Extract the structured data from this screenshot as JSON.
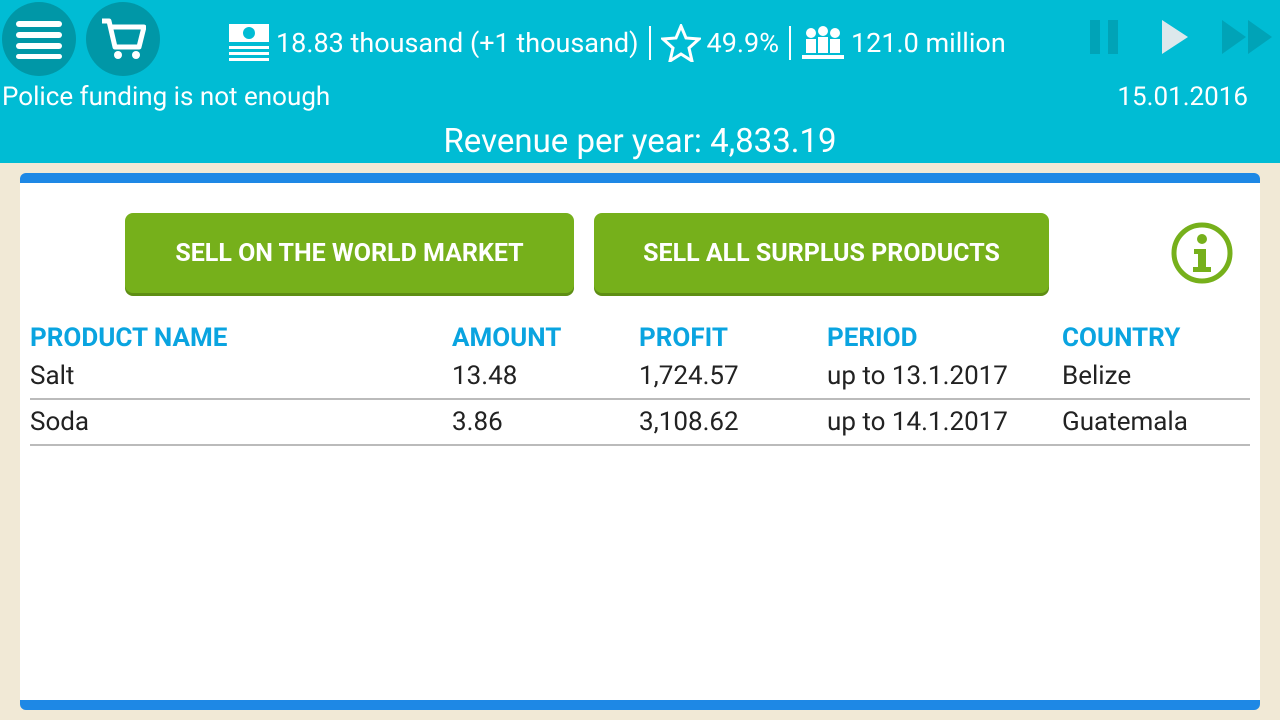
{
  "header": {
    "money": "18.83 thousand (+1 thousand)",
    "rating": "49.9%",
    "population": "121.0 million",
    "alert": "Police funding is not enough",
    "date": "15.01.2016",
    "revenue": "Revenue per year: 4,833.19"
  },
  "buttons": {
    "sell_world": "SELL ON THE WORLD MARKET",
    "sell_surplus": "SELL ALL SURPLUS PRODUCTS"
  },
  "table": {
    "columns": [
      "PRODUCT NAME",
      "AMOUNT",
      "PROFIT",
      "PERIOD",
      "COUNTRY"
    ],
    "rows": [
      [
        "Salt",
        "13.48",
        "1,724.57",
        "up to 13.1.2017",
        "Belize"
      ],
      [
        "Soda",
        "3.86",
        "3,108.62",
        "up to 14.1.2017",
        "Guatemala"
      ]
    ]
  },
  "colors": {
    "header": "#00bcd4",
    "button": "#76b01b",
    "accent": "#1e88e5"
  }
}
